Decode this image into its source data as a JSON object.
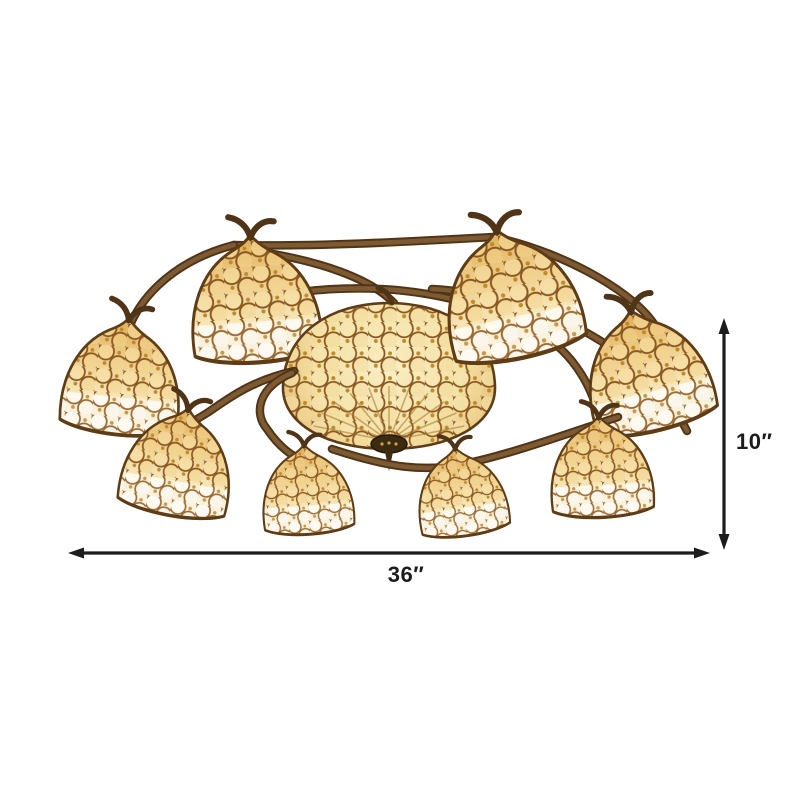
{
  "figure": {
    "description": "Tiffany-style beaded semi-flush ceiling light: central jeweled stained-glass bowl with eight pebble-glass dome shades on curved bronze arms, annotated with overall dimensions",
    "shade_count": 9
  },
  "dimensions": {
    "width_label": "36″",
    "height_label": "10″"
  },
  "icons": {
    "width_arrow": "horizontal-double-arrow",
    "height_arrow": "vertical-double-arrow"
  },
  "colors": {
    "background": "#ffffff",
    "ink": "#1c1c1c",
    "bronze_dark": "#503418",
    "bronze": "#7d5a31",
    "leading": "#5e3c16",
    "glass_amber_deep": "#dfae58",
    "glass_amber": "#eecd8a",
    "glass_cream": "#f7e7bb",
    "glass_white": "#fbf4e4",
    "jewel_gold": "#c08a28",
    "knob": "#3d2b11"
  }
}
